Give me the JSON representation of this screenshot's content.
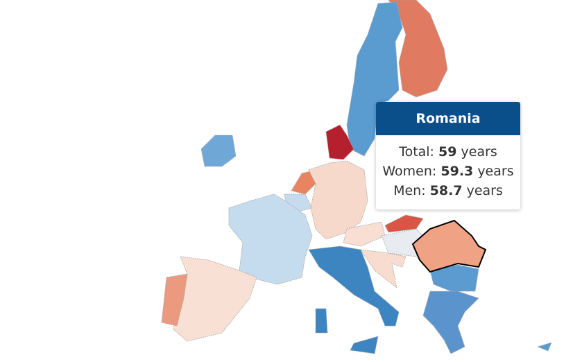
{
  "tooltip": {
    "title": "Romania",
    "rows": [
      {
        "label": "Total:",
        "value": 59,
        "unit": "years"
      },
      {
        "label": "Women:",
        "value": 59.3,
        "unit": "years"
      },
      {
        "label": "Men:",
        "value": 58.7,
        "unit": "years"
      }
    ]
  }
}
